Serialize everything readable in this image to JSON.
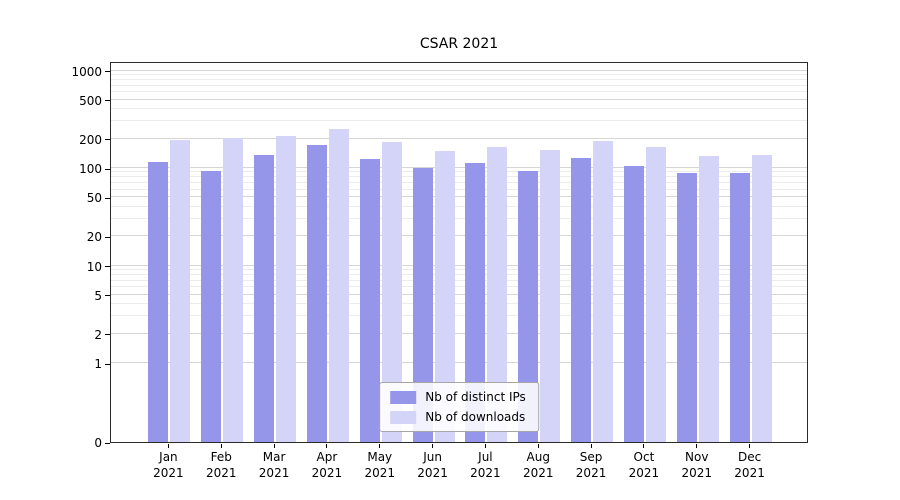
{
  "chart_data": {
    "type": "bar",
    "title": "CSAR 2021",
    "categories": [
      "Jan 2021",
      "Feb 2021",
      "Mar 2021",
      "Apr 2021",
      "May 2021",
      "Jun 2021",
      "Jul 2021",
      "Aug 2021",
      "Sep 2021",
      "Oct 2021",
      "Nov 2021",
      "Dec 2021"
    ],
    "series": [
      {
        "name": "Nb of distinct IPs",
        "color": "#9595ea",
        "values": [
          115,
          93,
          135,
          172,
          125,
          101,
          113,
          93,
          128,
          104,
          89,
          89
        ]
      },
      {
        "name": "Nb of downloads",
        "color": "#d4d4f8",
        "values": [
          195,
          202,
          213,
          252,
          185,
          150,
          165,
          152,
          188,
          163,
          133,
          136
        ]
      }
    ],
    "yscale": "symlog",
    "yticks": [
      0,
      1,
      2,
      5,
      10,
      20,
      50,
      100,
      200,
      500,
      1000
    ],
    "ylim": [
      0,
      1000
    ],
    "xlabel": "",
    "ylabel": "",
    "grid": true,
    "legend_position": "lower center",
    "colors": {
      "grid_major": "#d6d6d6",
      "grid_minor": "#ececec",
      "axis": "#2b2b2b",
      "background": "#ffffff"
    }
  }
}
